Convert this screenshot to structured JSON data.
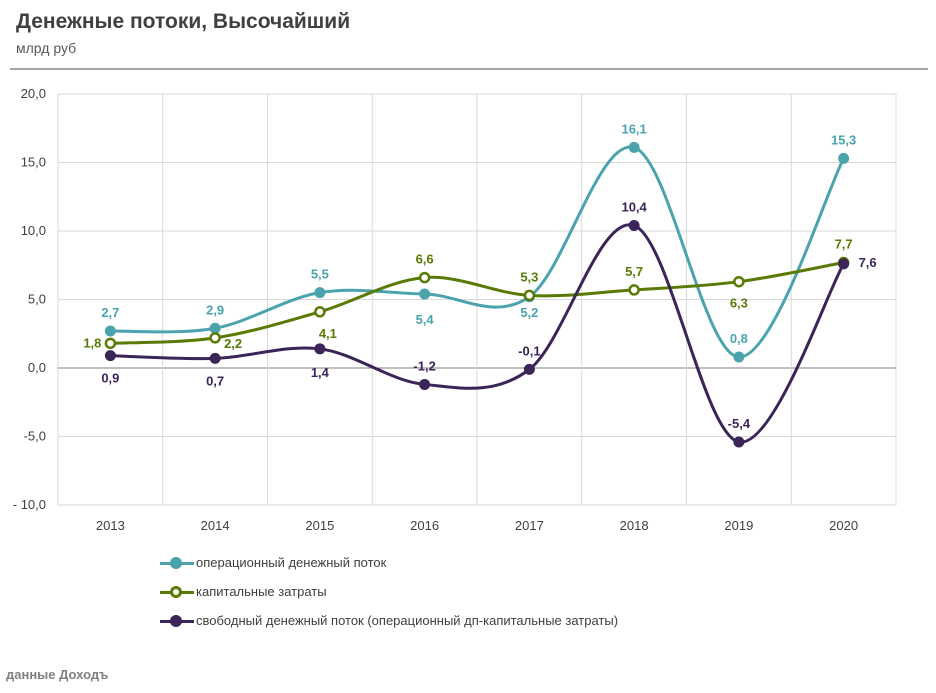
{
  "header": {
    "title": "Денежные потоки, Высочайший",
    "subtitle": "млрд руб"
  },
  "footer": {
    "source": "данные Доходъ"
  },
  "colors": {
    "operating": "#4aa3ad",
    "capex": "#5a7a06",
    "free": "#3b2457",
    "grid": "#d9d9d9",
    "axis": "#7f7f7f"
  },
  "chart_data": {
    "type": "line",
    "title": "Денежные потоки, Высочайший",
    "ylabel": "млрд руб",
    "xlabel": "",
    "categories": [
      "2013",
      "2014",
      "2015",
      "2016",
      "2017",
      "2018",
      "2019",
      "2020"
    ],
    "ylim": [
      -10,
      20
    ],
    "yticks": [
      -10,
      -5,
      0,
      5,
      10,
      15,
      20
    ],
    "ytick_labels": [
      "- 10,0",
      "-5,0",
      "0,0",
      "5,0",
      "10,0",
      "15,0",
      "20,0"
    ],
    "grid": true,
    "legend_position": "bottom-left",
    "series": [
      {
        "key": "operating",
        "name": "операционный денежный поток",
        "values": [
          2.7,
          2.9,
          5.5,
          5.4,
          5.2,
          16.1,
          0.8,
          15.3
        ],
        "labels": [
          "2,7",
          "2,9",
          "5,5",
          "5,4",
          "5,2",
          "16,1",
          "0,8",
          "15,3"
        ],
        "marker": "filled"
      },
      {
        "key": "capex",
        "name": "капитальные затраты",
        "values": [
          1.8,
          2.2,
          4.1,
          6.6,
          5.3,
          5.7,
          6.3,
          7.7
        ],
        "labels": [
          "1,8",
          "2,2",
          "4,1",
          "6,6",
          "5,3",
          "5,7",
          "6,3",
          "7,7"
        ],
        "marker": "hollow"
      },
      {
        "key": "free",
        "name": "свободный денежный поток (операционный дп-капитальные затраты)",
        "values": [
          0.9,
          0.7,
          1.4,
          -1.2,
          -0.1,
          10.4,
          -5.4,
          7.6
        ],
        "labels": [
          "0,9",
          "0,7",
          "1,4",
          "-1,2",
          "-0,1",
          "10,4",
          "-5,4",
          "7,6"
        ],
        "marker": "filled"
      }
    ]
  }
}
